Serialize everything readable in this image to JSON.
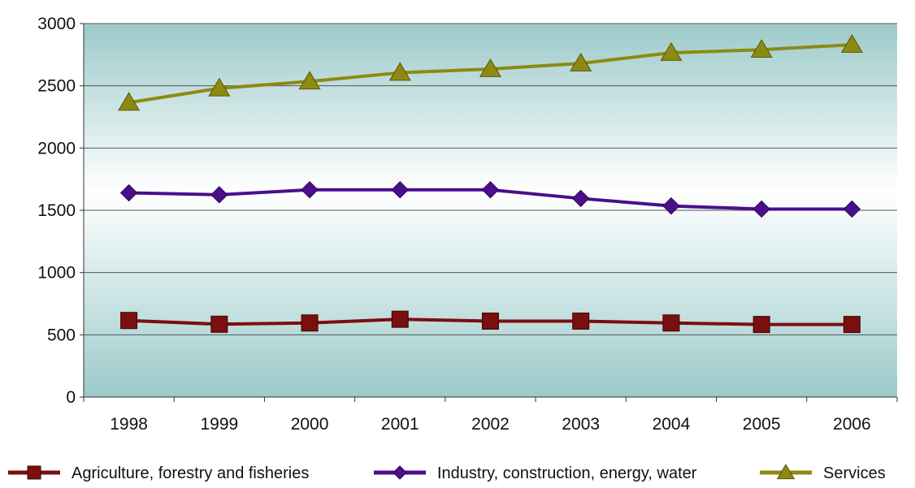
{
  "chart_data": {
    "type": "line",
    "title": "",
    "xlabel": "",
    "ylabel": "",
    "categories": [
      "1998",
      "1999",
      "2000",
      "2001",
      "2002",
      "2003",
      "2004",
      "2005",
      "2006"
    ],
    "ylim": [
      0,
      3000
    ],
    "y_ticks": [
      "0",
      "500",
      "1000",
      "1500",
      "2000",
      "2500",
      "3000"
    ],
    "grid": "horizontal",
    "legend_position": "bottom",
    "series": [
      {
        "name": "Agriculture, forestry and fisheries",
        "marker": "square",
        "color": "#7a0f0f",
        "values": [
          615,
          585,
          595,
          625,
          610,
          610,
          595,
          583,
          583
        ]
      },
      {
        "name": "Industry, construction, energy, water",
        "marker": "diamond",
        "color": "#4b0f8c",
        "values": [
          1640,
          1625,
          1665,
          1665,
          1665,
          1595,
          1535,
          1510,
          1510
        ]
      },
      {
        "name": "Services",
        "marker": "triangle",
        "color": "#8c8a12",
        "values": [
          2365,
          2480,
          2535,
          2605,
          2635,
          2680,
          2765,
          2790,
          2830
        ]
      }
    ],
    "plot_background": {
      "top": "#9ccaca",
      "middle": "#ffffff",
      "bottom": "#9ccaca"
    },
    "gridline_color": "#555555"
  }
}
